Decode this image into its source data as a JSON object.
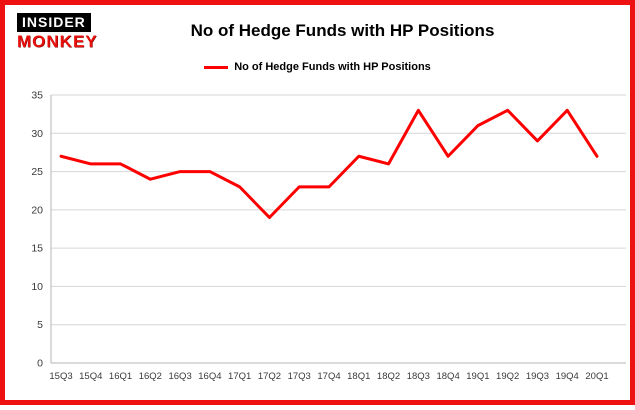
{
  "page": {
    "frame_color": "#ee1111",
    "background": "#ffffff"
  },
  "logo": {
    "line1": "INSIDER",
    "line2": "MONKEY"
  },
  "header": {
    "title": "No of Hedge Funds with HP Positions"
  },
  "legend": {
    "label": "No of Hedge Funds with HP Positions",
    "color": "#ff0000"
  },
  "chart_data": {
    "type": "line",
    "title": "No of Hedge Funds with HP Positions",
    "categories": [
      "15Q3",
      "15Q4",
      "16Q1",
      "16Q2",
      "16Q3",
      "16Q4",
      "17Q1",
      "17Q2",
      "17Q3",
      "17Q4",
      "18Q1",
      "18Q2",
      "18Q3",
      "18Q4",
      "19Q1",
      "19Q2",
      "19Q3",
      "19Q4",
      "20Q1"
    ],
    "series": [
      {
        "name": "No of Hedge Funds with HP Positions",
        "values": [
          27,
          26,
          26,
          24,
          25,
          25,
          23,
          19,
          23,
          23,
          27,
          26,
          33,
          27,
          31,
          33,
          29,
          33,
          27
        ]
      }
    ],
    "xlabel": "",
    "ylabel": "",
    "ylim": [
      0,
      35
    ],
    "ytick_step": 5,
    "grid": true,
    "line_color": "#ff0000",
    "legend_position": "top"
  }
}
